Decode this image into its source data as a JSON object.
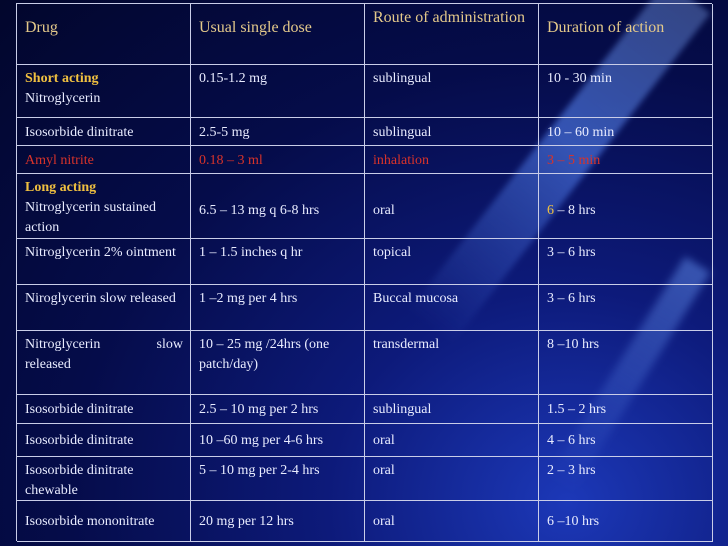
{
  "headers": [
    "Drug",
    "Usual single dose",
    "Route of administration",
    "Duration of action"
  ],
  "short_acting_label": "Short acting",
  "long_acting_label": "Long acting",
  "rows": [
    {
      "drug": "Nitroglycerin",
      "dose": "0.15-1.2 mg",
      "route": "sublingual",
      "duration": "10 - 30 min"
    },
    {
      "drug": "Isosorbide dinitrate",
      "dose": "2.5-5 mg",
      "route": "sublingual",
      "duration": "10 – 60 min"
    },
    {
      "drug": "Amyl nitrite",
      "dose": "0.18 – 3 ml",
      "route": "inhalation",
      "duration": "3 – 5 min"
    },
    {
      "drug": "Nitroglycerin sustained action",
      "dose": "6.5 – 13 mg q 6-8 hrs",
      "route": "oral",
      "duration_prefix": "6",
      "duration_rest": " – 8 hrs"
    },
    {
      "drug": "Nitroglycerin 2% ointment",
      "dose": "1 – 1.5 inches q hr",
      "route": "topical",
      "duration": "3 – 6 hrs"
    },
    {
      "drug": "Niroglycerin slow released",
      "dose": "1 –2 mg per 4 hrs",
      "route": "Buccal mucosa",
      "duration": "3 – 6 hrs"
    },
    {
      "drug_line1_left": "Nitroglycerin",
      "drug_line1_right": "slow",
      "drug_line2": "released",
      "dose": "10 – 25 mg /24hrs (one patch/day)",
      "route": "transdermal",
      "duration": "8 –10 hrs"
    },
    {
      "drug": "Isosorbide dinitrate",
      "dose": "2.5 – 10 mg per 2 hrs",
      "route": "sublingual",
      "duration": "1.5 – 2 hrs"
    },
    {
      "drug": "Isosorbide dinitrate",
      "dose": "10 –60 mg per 4-6 hrs",
      "route": "oral",
      "duration": "4 – 6 hrs"
    },
    {
      "drug": "Isosorbide dinitrate chewable",
      "dose": "5 – 10 mg per 2-4 hrs",
      "route": "oral",
      "duration": "2 – 3 hrs"
    },
    {
      "drug": "Isosorbide mononitrate",
      "dose": "20 mg per 12 hrs",
      "route": "oral",
      "duration": "6 –10 hrs"
    }
  ],
  "colors": {
    "background": "#050c4a",
    "header_text": "#e4c98a",
    "section_label": "#f0c040",
    "highlight_row": "#d8332a",
    "grid_lines": "#c9cde8"
  }
}
